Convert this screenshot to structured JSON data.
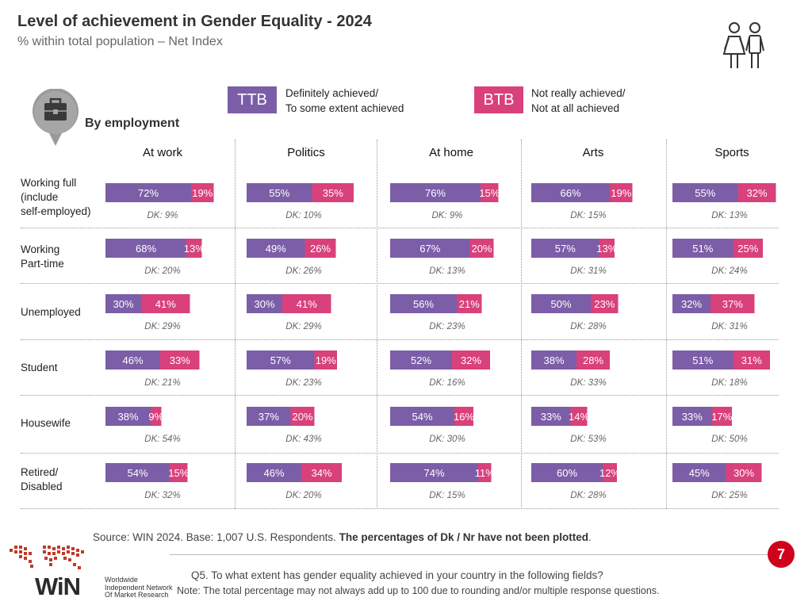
{
  "header": {
    "title": "Level of achievement in Gender Equality - 2024",
    "subtitle": "% within total population – Net Index",
    "segment_title": "By employment"
  },
  "legend": {
    "ttb": {
      "label": "TTB",
      "text_line1": "Definitely achieved/",
      "text_line2": "To some extent achieved",
      "color": "#7b5ea7"
    },
    "btb": {
      "label": "BTB",
      "text_line1": "Not really achieved/",
      "text_line2": "Not at all achieved",
      "color": "#d8417b"
    }
  },
  "chart_data": {
    "type": "bar",
    "orientation": "horizontal-stacked",
    "title": "Level of achievement in Gender Equality - 2024",
    "subtitle": "% within total population – Net Index",
    "columns": [
      "At work",
      "Politics",
      "At home",
      "Arts",
      "Sports"
    ],
    "rows": [
      {
        "label_lines": [
          "Working full",
          "(include",
          "self-employed)"
        ],
        "ttb": [
          72,
          55,
          76,
          66,
          55
        ],
        "btb": [
          19,
          35,
          15,
          19,
          32
        ],
        "dk": [
          9,
          10,
          9,
          15,
          13
        ]
      },
      {
        "label_lines": [
          "Working",
          "Part-time"
        ],
        "ttb": [
          68,
          49,
          67,
          57,
          51
        ],
        "btb": [
          13,
          26,
          20,
          13,
          25
        ],
        "dk": [
          20,
          26,
          13,
          31,
          24
        ]
      },
      {
        "label_lines": [
          "Unemployed"
        ],
        "ttb": [
          30,
          30,
          56,
          50,
          32
        ],
        "btb": [
          41,
          41,
          21,
          23,
          37
        ],
        "dk": [
          29,
          29,
          23,
          28,
          31
        ]
      },
      {
        "label_lines": [
          "Student"
        ],
        "ttb": [
          46,
          57,
          52,
          38,
          51
        ],
        "btb": [
          33,
          19,
          32,
          28,
          31
        ],
        "dk": [
          21,
          23,
          16,
          33,
          18
        ]
      },
      {
        "label_lines": [
          "Housewife"
        ],
        "ttb": [
          38,
          37,
          54,
          33,
          33
        ],
        "btb": [
          9,
          20,
          16,
          14,
          17
        ],
        "dk": [
          54,
          43,
          30,
          53,
          50
        ]
      },
      {
        "label_lines": [
          "Retired/",
          "Disabled"
        ],
        "ttb": [
          54,
          46,
          74,
          60,
          45
        ],
        "btb": [
          15,
          34,
          11,
          12,
          30
        ],
        "dk": [
          32,
          20,
          15,
          28,
          25
        ]
      }
    ],
    "value_suffix": "%",
    "dk_prefix": "DK: ",
    "series": [
      {
        "name": "TTB",
        "color": "#7b5ea7"
      },
      {
        "name": "BTB",
        "color": "#d8417b"
      }
    ]
  },
  "footer": {
    "source_regular": "Source: WIN 2024. Base: 1,007 U.S. Respondents. ",
    "source_bold": "The percentages of Dk / Nr have not been plotted",
    "source_end": ".",
    "page_number": "7",
    "question": "Q5. To what extent has gender equality achieved in your country in the following fields?",
    "note": "Note: The total percentage may not always add up to 100 due to rounding and/or multiple response questions.",
    "logo_word": "WiN",
    "logo_sub_line1": "Worldwide",
    "logo_sub_line2": "Independent Network",
    "logo_sub_line3": "Of Market Research"
  }
}
